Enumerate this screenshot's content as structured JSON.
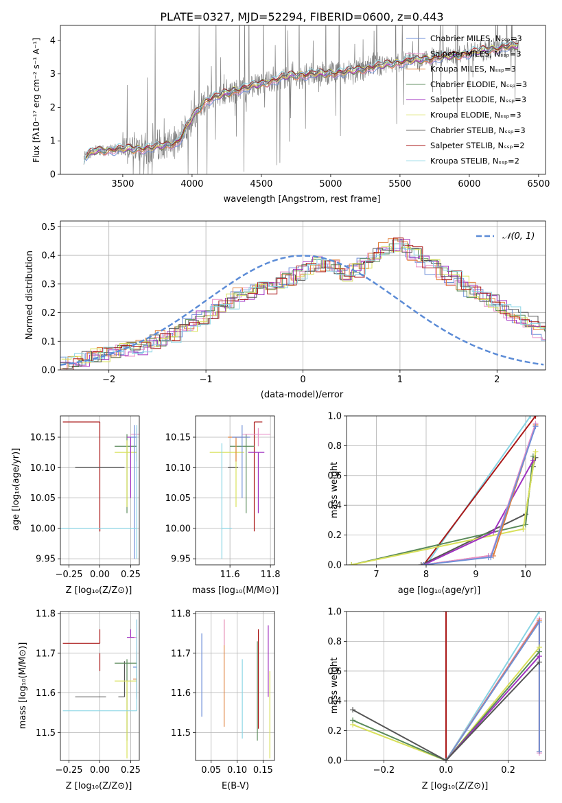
{
  "figure_title": "PLATE=0327, MJD=52294, FIBERID=0600, z=0.443",
  "colors": {
    "Chabrier MILES": "#6f8fd8",
    "Salpeter MILES": "#e88fc8",
    "Kroupa MILES": "#e0803c",
    "Chabrier ELODIE": "#5a8a5a",
    "Salpeter ELODIE": "#a030c0",
    "Kroupa ELODIE": "#d8e05a",
    "Chabrier STELIB": "#555555",
    "Salpeter STELIB": "#aa1818",
    "Kroupa STELIB": "#88d4e4",
    "data": "#808080",
    "normal": "#5b8bd6"
  },
  "chart_data": [
    {
      "type": "line",
      "xlabel": "wavelength [Angstrom, rest frame]",
      "ylabel": "Flux [fλ10⁻¹⁷ erg cm⁻² s⁻¹ A⁻¹]",
      "xlim": [
        3050,
        6550
      ],
      "ylim": [
        0,
        4.45
      ],
      "xticks": [
        "3500",
        "4000",
        "4500",
        "5000",
        "5500",
        "6000",
        "6500"
      ],
      "yticks": [
        "0",
        "1",
        "2",
        "3",
        "4"
      ],
      "grid": false,
      "legend_position": "upper-right",
      "legend": [
        "Chabrier MILES, Nₛₛₚ=3",
        "Salpeter MILES, Nₛₛₚ=3",
        "Kroupa MILES, Nₛₛₚ=3",
        "Chabrier ELODIE, Nₛₛₚ=3",
        "Salpeter ELODIE, Nₛₛₚ=3",
        "Kroupa ELODIE, Nₛₛₚ=3",
        "Chabrier STELIB, Nₛₛₚ=3",
        "Salpeter STELIB, Nₛₛₚ=2",
        "Kroupa STELIB, Nₛₛₚ=2"
      ],
      "continuum": {
        "x": [
          3220,
          3300,
          3500,
          3700,
          3900,
          4000,
          4100,
          4300,
          4500,
          4700,
          4900,
          5100,
          5300,
          5500,
          5700,
          5900,
          6100,
          6360
        ],
        "y": [
          0.5,
          0.7,
          0.75,
          0.78,
          0.95,
          1.7,
          2.2,
          2.5,
          2.7,
          2.95,
          3.0,
          3.05,
          3.2,
          3.35,
          3.45,
          3.55,
          3.7,
          3.85
        ]
      }
    },
    {
      "type": "line",
      "xlabel": "(data-model)/error",
      "ylabel": "Normed distribution",
      "xlim": [
        -2.5,
        2.5
      ],
      "ylim": [
        0,
        0.52
      ],
      "xticks": [
        "−2",
        "−1",
        "0",
        "1",
        "2"
      ],
      "yticks": [
        "0.0",
        "0.1",
        "0.2",
        "0.3",
        "0.4",
        "0.5"
      ],
      "grid": true,
      "legend_position": "upper-right",
      "legend": [
        "𝒩(0, 1)"
      ],
      "histogram_bin_width": 0.1,
      "histogram_approx": [
        0.02,
        0.03,
        0.04,
        0.05,
        0.055,
        0.06,
        0.065,
        0.07,
        0.08,
        0.095,
        0.11,
        0.12,
        0.14,
        0.16,
        0.18,
        0.2,
        0.22,
        0.24,
        0.26,
        0.27,
        0.28,
        0.29,
        0.3,
        0.32,
        0.34,
        0.36,
        0.37,
        0.37,
        0.36,
        0.33,
        0.35,
        0.38,
        0.4,
        0.42,
        0.44,
        0.43,
        0.41,
        0.38,
        0.36,
        0.34,
        0.32,
        0.3,
        0.28,
        0.26,
        0.24,
        0.22,
        0.2,
        0.18,
        0.16,
        0.14,
        0.12,
        0.11,
        0.1,
        0.09,
        0.085,
        0.08,
        0.075,
        0.07,
        0.06,
        0.05
      ]
    },
    {
      "type": "scatter",
      "xlabel": "Z [log₁₀(Z/Z⊙)]",
      "ylabel": "age  [log₁₀(age/yr)]",
      "xlim": [
        -0.32,
        0.32
      ],
      "ylim": [
        9.94,
        10.185
      ],
      "xticks": [
        "−0.25",
        "0.00",
        "0.25"
      ],
      "yticks": [
        "9.95",
        "10.00",
        "10.05",
        "10.10",
        "10.15"
      ],
      "grid": true,
      "errorbars": [
        {
          "x": 0.0,
          "xerr": [
            0.3,
            0.0
          ],
          "y": 10.175,
          "yerr": [
            0.18,
            0.0
          ],
          "series": "Salpeter STELIB"
        },
        {
          "x": 0.0,
          "xerr": [
            0.0,
            0.0
          ],
          "y": 10.0,
          "yerr": [
            0.005,
            0.0
          ],
          "series": "Salpeter STELIB"
        },
        {
          "x": 0.2,
          "xerr": [
            0.4,
            0.0
          ],
          "y": 10.1,
          "yerr": [
            0.0,
            0.0
          ],
          "series": "Chabrier STELIB"
        },
        {
          "x": 0.22,
          "xerr": [
            0.1,
            0.08
          ],
          "y": 10.135,
          "yerr": [
            0.11,
            0.02
          ],
          "series": "Chabrier ELODIE"
        },
        {
          "x": 0.22,
          "xerr": [
            0.1,
            0.08
          ],
          "y": 10.125,
          "yerr": [
            0.09,
            0.02
          ],
          "series": "Kroupa ELODIE"
        },
        {
          "x": 0.3,
          "xerr": [
            0.02,
            0.0
          ],
          "y": 10.15,
          "yerr": [
            0.04,
            0.0
          ],
          "series": "Kroupa MILES"
        },
        {
          "x": 0.3,
          "xerr": [
            0.05,
            0.02
          ],
          "y": 10.155,
          "yerr": [
            0.02,
            0.01
          ],
          "series": "Salpeter MILES"
        },
        {
          "x": 0.25,
          "xerr": [
            0.03,
            0.03
          ],
          "y": 10.15,
          "yerr": [
            0.1,
            0.0
          ],
          "series": "Salpeter ELODIE"
        },
        {
          "x": 0.28,
          "xerr": [
            0.03,
            0.02
          ],
          "y": 10.15,
          "yerr": [
            0.2,
            0.02
          ],
          "series": "Chabrier MILES"
        },
        {
          "x": 0.0,
          "xerr": [
            0.55,
            0.3
          ],
          "y": 10.0,
          "yerr": [
            0.0,
            0.0
          ],
          "series": "Kroupa STELIB"
        },
        {
          "x": 0.3,
          "xerr": [
            0.0,
            0.0
          ],
          "y": 10.1,
          "yerr": [
            0.15,
            0.07
          ],
          "series": "Kroupa STELIB"
        }
      ]
    },
    {
      "type": "scatter",
      "xlabel": "mass [log₁₀(M/M⊙)]",
      "ylabel": "",
      "xlim": [
        11.43,
        11.82
      ],
      "ylim": [
        9.94,
        10.185
      ],
      "xticks": [
        "11.6",
        "11.8"
      ],
      "yticks": [
        "9.95",
        "10.00",
        "10.05",
        "10.10",
        "10.15"
      ],
      "grid": true,
      "errorbars": [
        {
          "x": 11.72,
          "xerr": [
            0.0,
            0.04
          ],
          "y": 10.175,
          "yerr": [
            0.18,
            0.0
          ],
          "series": "Salpeter STELIB"
        },
        {
          "x": 11.59,
          "xerr": [
            0.0,
            0.05
          ],
          "y": 10.1,
          "yerr": [
            0.0,
            0.0
          ],
          "series": "Chabrier STELIB"
        },
        {
          "x": 11.68,
          "xerr": [
            0.08,
            0.04
          ],
          "y": 10.135,
          "yerr": [
            0.11,
            0.02
          ],
          "series": "Chabrier ELODIE"
        },
        {
          "x": 11.63,
          "xerr": [
            0.13,
            0.04
          ],
          "y": 10.125,
          "yerr": [
            0.09,
            0.02
          ],
          "series": "Kroupa ELODIE"
        },
        {
          "x": 11.63,
          "xerr": [
            0.04,
            0.06
          ],
          "y": 10.15,
          "yerr": [
            0.04,
            0.0
          ],
          "series": "Kroupa MILES"
        },
        {
          "x": 11.74,
          "xerr": [
            0.08,
            0.06
          ],
          "y": 10.155,
          "yerr": [
            0.02,
            0.01
          ],
          "series": "Salpeter MILES"
        },
        {
          "x": 11.74,
          "xerr": [
            0.05,
            0.03
          ],
          "y": 10.125,
          "yerr": [
            0.1,
            0.0
          ],
          "series": "Salpeter ELODIE"
        },
        {
          "x": 11.66,
          "xerr": [
            0.05,
            0.04
          ],
          "y": 10.15,
          "yerr": [
            0.1,
            0.02
          ],
          "series": "Chabrier MILES"
        },
        {
          "x": 11.56,
          "xerr": [
            0.0,
            0.05
          ],
          "y": 10.0,
          "yerr": [
            0.05,
            0.14
          ],
          "series": "Kroupa STELIB"
        }
      ]
    },
    {
      "type": "line",
      "xlabel": "age  [log₁₀(age/yr)]",
      "ylabel": "mass weight",
      "xlim": [
        6.4,
        10.4
      ],
      "ylim": [
        0,
        1.0
      ],
      "xticks": [
        "7",
        "8",
        "9",
        "10"
      ],
      "yticks": [
        "0.0",
        "0.2",
        "0.4",
        "0.6",
        "0.8",
        "1.0"
      ],
      "grid": true,
      "series": [
        {
          "name": "Kroupa STELIB",
          "x": [
            8.0,
            10.1
          ],
          "y": [
            0.0,
            1.0
          ]
        },
        {
          "name": "Salpeter STELIB",
          "x": [
            7.95,
            10.2
          ],
          "y": [
            0.0,
            1.0
          ]
        },
        {
          "name": "Chabrier STELIB",
          "x": [
            7.9,
            10.0,
            10.15,
            10.2
          ],
          "y": [
            0.0,
            0.34,
            0.66,
            0.72
          ]
        },
        {
          "name": "Chabrier ELODIE",
          "x": [
            6.5,
            10.0,
            10.15
          ],
          "y": [
            0.0,
            0.27,
            0.73
          ]
        },
        {
          "name": "Kroupa ELODIE",
          "x": [
            6.5,
            9.95,
            10.2
          ],
          "y": [
            0.0,
            0.24,
            0.76
          ]
        },
        {
          "name": "Salpeter ELODIE",
          "x": [
            7.95,
            9.35,
            10.15
          ],
          "y": [
            0.0,
            0.22,
            0.7
          ]
        },
        {
          "name": "Kroupa MILES",
          "x": [
            7.95,
            9.25,
            9.35,
            10.2
          ],
          "y": [
            0.0,
            0.06,
            0.06,
            0.94
          ]
        },
        {
          "name": "Salpeter MILES",
          "x": [
            7.95,
            9.25,
            9.3,
            10.2
          ],
          "y": [
            0.0,
            0.06,
            0.06,
            0.95
          ]
        },
        {
          "name": "Chabrier MILES",
          "x": [
            7.95,
            9.25,
            9.3,
            10.2
          ],
          "y": [
            0.0,
            0.05,
            0.05,
            0.93
          ]
        }
      ]
    },
    {
      "type": "scatter",
      "xlabel": "Z [log₁₀(Z/Z⊙)]",
      "ylabel": "mass [log₁₀(M/M⊙)]",
      "xlim": [
        -0.32,
        0.32
      ],
      "ylim": [
        11.43,
        11.805
      ],
      "xticks": [
        "−0.25",
        "0.00",
        "0.25"
      ],
      "yticks": [
        "11.5",
        "11.6",
        "11.7",
        "11.8"
      ],
      "grid": true,
      "errorbars": [
        {
          "x": 0.0,
          "xerr": [
            0.3,
            0.0
          ],
          "y": 11.725,
          "yerr": [
            0.0,
            0.035
          ],
          "series": "Salpeter STELIB"
        },
        {
          "x": 0.0,
          "xerr": [
            0.0,
            0.0
          ],
          "y": 11.7,
          "yerr": [
            0.045,
            0.0
          ],
          "series": "Salpeter STELIB"
        },
        {
          "x": 0.05,
          "xerr": [
            0.25,
            0.0
          ],
          "y": 11.59,
          "yerr": [
            0.0,
            0.0
          ],
          "series": "Chabrier STELIB"
        },
        {
          "x": 0.2,
          "xerr": [
            0.05,
            0.0
          ],
          "y": 11.59,
          "yerr": [
            0.0,
            0.09
          ],
          "series": "Chabrier STELIB"
        },
        {
          "x": 0.22,
          "xerr": [
            0.1,
            0.08
          ],
          "y": 11.675,
          "yerr": [
            0.195,
            0.01
          ],
          "series": "Chabrier ELODIE"
        },
        {
          "x": 0.22,
          "xerr": [
            0.1,
            0.08
          ],
          "y": 11.63,
          "yerr": [
            0.195,
            0.0
          ],
          "series": "Kroupa ELODIE"
        },
        {
          "x": 0.3,
          "xerr": [
            0.03,
            0.0
          ],
          "y": 11.635,
          "yerr": [
            0.045,
            0.07
          ],
          "series": "Kroupa MILES"
        },
        {
          "x": 0.3,
          "xerr": [
            0.06,
            0.0
          ],
          "y": 11.74,
          "yerr": [
            0.065,
            0.045
          ],
          "series": "Salpeter MILES"
        },
        {
          "x": 0.25,
          "xerr": [
            0.03,
            0.03
          ],
          "y": 11.74,
          "yerr": [
            0.0,
            0.02
          ],
          "series": "Salpeter ELODIE"
        },
        {
          "x": 0.3,
          "xerr": [
            0.03,
            0.0
          ],
          "y": 11.665,
          "yerr": [
            0.08,
            0.0
          ],
          "series": "Chabrier MILES"
        },
        {
          "x": 0.0,
          "xerr": [
            0.3,
            0.3
          ],
          "y": 11.555,
          "yerr": [
            0.0,
            0.0
          ],
          "series": "Kroupa STELIB"
        },
        {
          "x": 0.3,
          "xerr": [
            0.0,
            0.0
          ],
          "y": 11.555,
          "yerr": [
            0.0,
            0.23
          ],
          "series": "Kroupa STELIB"
        }
      ]
    },
    {
      "type": "scatter",
      "xlabel": "E(B-V)",
      "ylabel": "",
      "xlim": [
        0.02,
        0.172
      ],
      "ylim": [
        11.43,
        11.805
      ],
      "xticks": [
        "0.05",
        "0.10",
        "0.15"
      ],
      "yticks": [
        "11.5",
        "11.6",
        "11.7",
        "11.8"
      ],
      "grid": true,
      "errorbars": [
        {
          "x": 0.032,
          "y": 11.645,
          "yerr": [
            0.105,
            0.105
          ],
          "series": "Chabrier MILES"
        },
        {
          "x": 0.075,
          "y": 11.65,
          "yerr": [
            0.135,
            0.135
          ],
          "series": "Kroupa MILES"
        },
        {
          "x": 0.075,
          "y": 11.72,
          "yerr": [
            0.0,
            0.065
          ],
          "series": "Salpeter MILES"
        },
        {
          "x": 0.11,
          "y": 11.585,
          "yerr": [
            0.1,
            0.1
          ],
          "series": "Kroupa STELIB"
        },
        {
          "x": 0.139,
          "y": 11.605,
          "yerr": [
            0.125,
            0.125
          ],
          "series": "Chabrier ELODIE"
        },
        {
          "x": 0.141,
          "y": 11.63,
          "yerr": [
            0.12,
            0.13
          ],
          "series": "Salpeter STELIB"
        },
        {
          "x": 0.16,
          "y": 11.68,
          "yerr": [
            0.09,
            0.09
          ],
          "series": "Salpeter ELODIE"
        },
        {
          "x": 0.163,
          "y": 11.545,
          "yerr": [
            0.11,
            0.11
          ],
          "series": "Kroupa ELODIE"
        }
      ]
    },
    {
      "type": "line",
      "xlabel": "Z [log₁₀(Z/Z⊙)]",
      "ylabel": "mass weight",
      "xlim": [
        -0.32,
        0.32
      ],
      "ylim": [
        0,
        1.0
      ],
      "xticks": [
        "−0.2",
        "0.0",
        "0.2"
      ],
      "yticks": [
        "0.0",
        "0.2",
        "0.4",
        "0.6",
        "0.8",
        "1.0"
      ],
      "grid": true,
      "series": [
        {
          "name": "Salpeter STELIB",
          "x": [
            0.0,
            0.0
          ],
          "y": [
            0.0,
            1.0
          ]
        },
        {
          "name": "Kroupa STELIB",
          "x": [
            0.0,
            0.3
          ],
          "y": [
            0.0,
            1.0
          ]
        },
        {
          "name": "Salpeter MILES",
          "x": [
            0.0,
            0.3,
            0.3
          ],
          "y": [
            0.0,
            0.95,
            0.05
          ]
        },
        {
          "name": "Kroupa MILES",
          "x": [
            0.0,
            0.3,
            0.3
          ],
          "y": [
            0.0,
            0.94,
            0.06
          ]
        },
        {
          "name": "Chabrier MILES",
          "x": [
            0.0,
            0.3,
            0.3
          ],
          "y": [
            0.0,
            0.93,
            0.06
          ]
        },
        {
          "name": "Kroupa ELODIE",
          "x": [
            -0.3,
            0.0,
            0.3
          ],
          "y": [
            0.24,
            0.0,
            0.76
          ]
        },
        {
          "name": "Chabrier ELODIE",
          "x": [
            -0.3,
            0.0,
            0.3
          ],
          "y": [
            0.27,
            0.0,
            0.73
          ]
        },
        {
          "name": "Salpeter ELODIE",
          "x": [
            0.0,
            0.3
          ],
          "y": [
            0.0,
            0.7
          ]
        },
        {
          "name": "Chabrier STELIB",
          "x": [
            -0.3,
            0.0,
            0.3
          ],
          "y": [
            0.34,
            0.0,
            0.66
          ]
        }
      ]
    }
  ]
}
